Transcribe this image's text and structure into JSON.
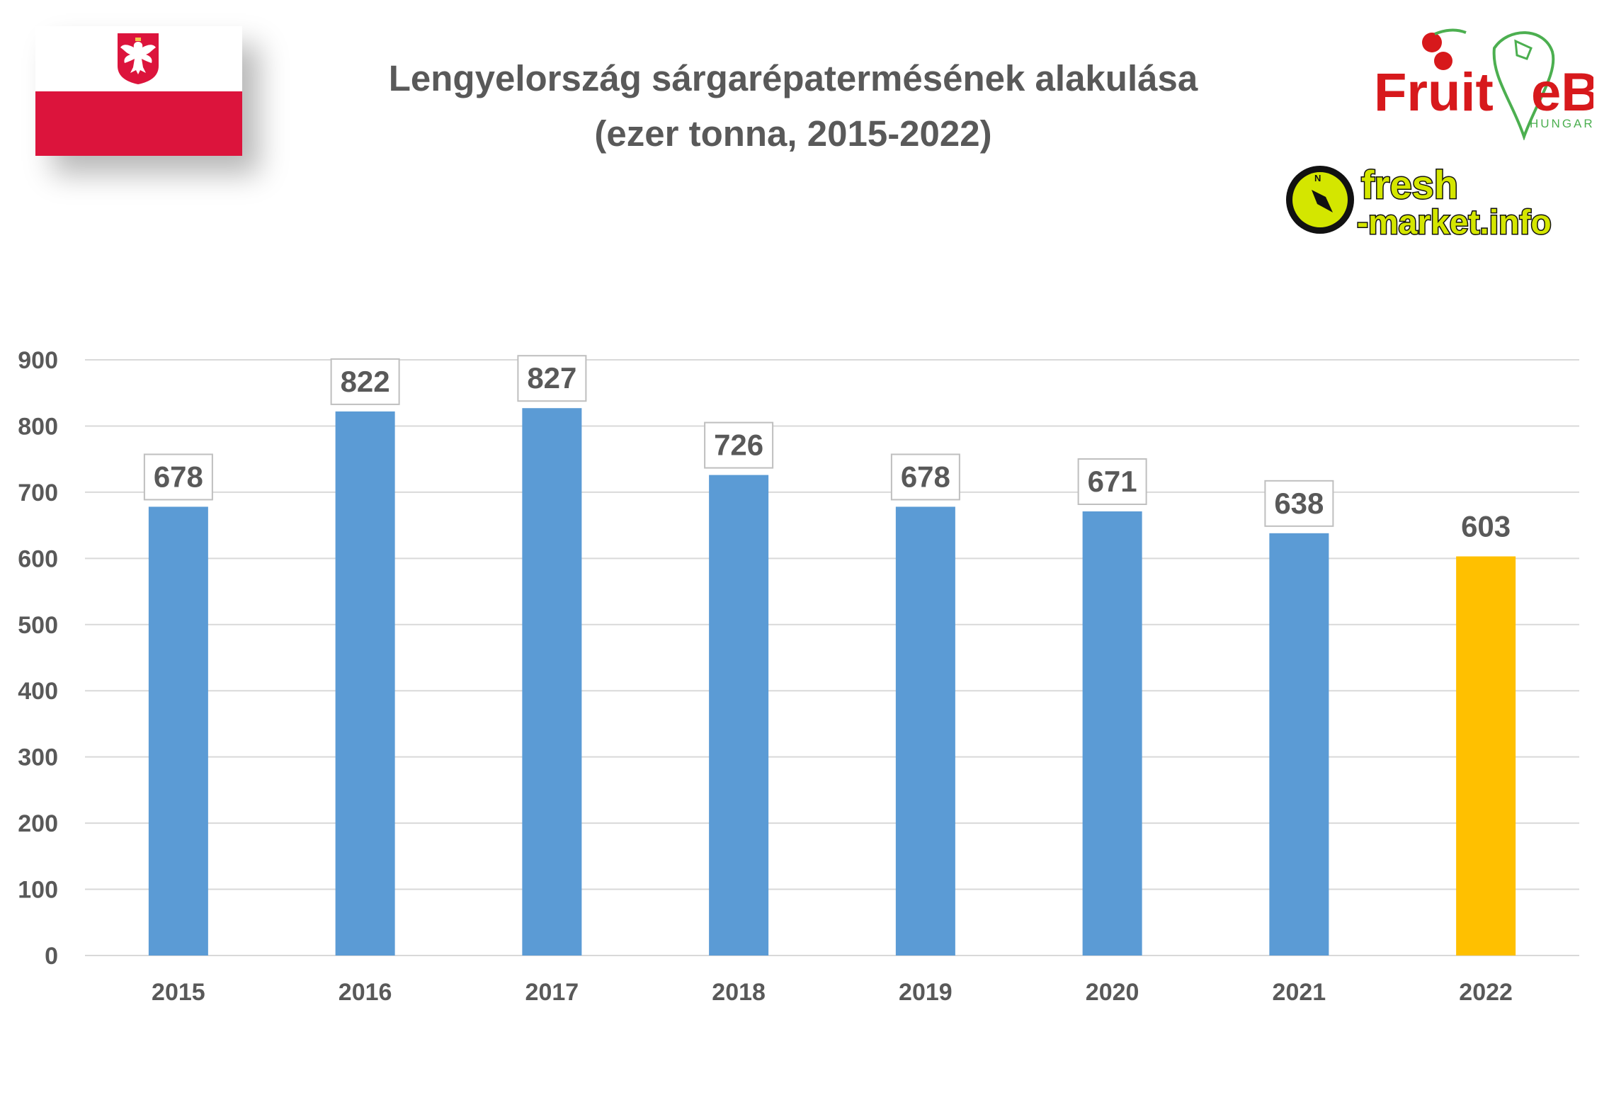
{
  "title_line1": "Lengyelország sárgarépatermésének alakulása",
  "title_line2": "(ezer tonna, 2015-2022)",
  "logos": {
    "fruitveb_text_1": "Fruit",
    "fruitveb_text_2": "eB",
    "fruitveb_sub": "HUNGARY",
    "freshmarket_text_1": "fresh",
    "freshmarket_text_2": "-market.info"
  },
  "colors": {
    "bar": "#5b9bd5",
    "bar_highlight": "#ffc000",
    "grid": "#d9d9d9",
    "text": "#595959",
    "flag_red": "#dc143c"
  },
  "chart_data": {
    "type": "bar",
    "title": "",
    "xlabel": "",
    "ylabel": "",
    "categories": [
      "2015",
      "2016",
      "2017",
      "2018",
      "2019",
      "2020",
      "2021",
      "2022"
    ],
    "values": [
      678,
      822,
      827,
      726,
      678,
      671,
      638,
      603
    ],
    "data_labels": [
      "678",
      "822",
      "827",
      "726",
      "678",
      "671",
      "638",
      "603"
    ],
    "highlight_index": 7,
    "ylim": [
      0,
      900
    ],
    "yticks": [
      "0",
      "100",
      "200",
      "300",
      "400",
      "500",
      "600",
      "700",
      "800",
      "900"
    ],
    "grid": true,
    "legend": "none"
  }
}
